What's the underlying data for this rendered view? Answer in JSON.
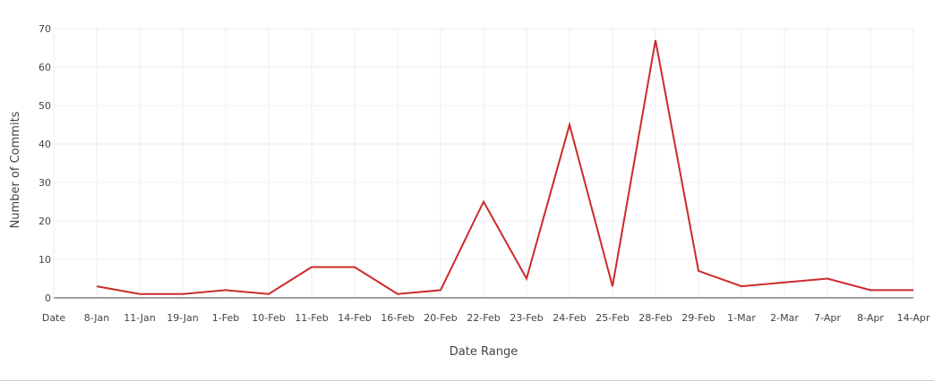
{
  "chart_data": {
    "type": "line",
    "xlabel": "Date Range",
    "ylabel": "Number of Commits",
    "categories": [
      "Date",
      "8-Jan",
      "11-Jan",
      "19-Jan",
      "1-Feb",
      "10-Feb",
      "11-Feb",
      "14-Feb",
      "16-Feb",
      "20-Feb",
      "22-Feb",
      "23-Feb",
      "24-Feb",
      "25-Feb",
      "28-Feb",
      "29-Feb",
      "1-Mar",
      "2-Mar",
      "7-Apr",
      "8-Apr",
      "14-Apr"
    ],
    "series": [
      {
        "values": [
          null,
          3,
          1,
          1,
          2,
          1,
          8,
          8,
          1,
          2,
          25,
          5,
          45,
          3,
          67,
          7,
          3,
          4,
          5,
          2,
          2
        ]
      }
    ],
    "ylim": [
      0,
      70
    ],
    "yticks": [
      0,
      10,
      20,
      30,
      40,
      50,
      60,
      70
    ],
    "grid": true,
    "line_color": "#cc2a2a",
    "legend": "none"
  }
}
